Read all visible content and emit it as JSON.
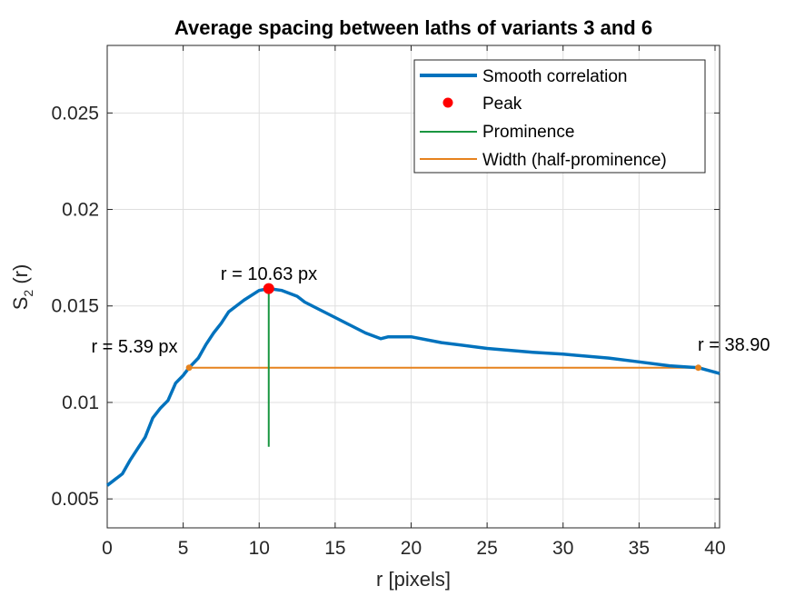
{
  "chart_data": {
    "type": "line",
    "title": "Average spacing between laths of variants 3 and 6",
    "xlabel": "r [pixels]",
    "ylabel": {
      "main": "S",
      "sub": "2",
      "rest": " (r)"
    },
    "xlim": [
      0,
      40.3
    ],
    "ylim": [
      0.0035,
      0.0285
    ],
    "xticks": [
      0,
      5,
      10,
      15,
      20,
      25,
      30,
      35,
      40
    ],
    "yticks": [
      0.005,
      0.01,
      0.015,
      0.02,
      0.025
    ],
    "xtick_labels": [
      "0",
      "5",
      "10",
      "15",
      "20",
      "25",
      "30",
      "35",
      "40"
    ],
    "ytick_labels": [
      "0.005",
      "0.01",
      "0.015",
      "0.02",
      "0.025"
    ],
    "grid": true,
    "legend_position": "top-right",
    "series": [
      {
        "name": "Smooth correlation",
        "color": "#0072BD",
        "x": [
          0,
          1,
          1.5,
          2,
          2.5,
          3,
          3.5,
          4,
          4.5,
          5,
          5.39,
          6,
          6.5,
          7,
          7.5,
          8,
          9,
          10,
          10.63,
          11.5,
          12.5,
          13,
          14,
          15,
          16,
          17,
          18,
          18.5,
          19.5,
          20,
          22,
          25,
          28,
          30,
          33,
          35,
          37,
          38.9,
          40.3
        ],
        "y": [
          0.0057,
          0.0063,
          0.007,
          0.0076,
          0.0082,
          0.0092,
          0.0097,
          0.0101,
          0.011,
          0.0114,
          0.0118,
          0.0123,
          0.013,
          0.0136,
          0.0141,
          0.0147,
          0.0153,
          0.0158,
          0.0159,
          0.0158,
          0.0155,
          0.0152,
          0.0148,
          0.0144,
          0.014,
          0.0136,
          0.0133,
          0.0134,
          0.0134,
          0.0134,
          0.0131,
          0.0128,
          0.0126,
          0.0125,
          0.0123,
          0.0121,
          0.0119,
          0.0118,
          0.0115
        ]
      }
    ],
    "peak": {
      "name": "Peak",
      "color": "#FF0000",
      "x": 10.63,
      "y": 0.0159,
      "label": "r = 10.63 px"
    },
    "prominence": {
      "name": "Prominence",
      "color": "#1A9641",
      "x": 10.63,
      "y_from": 0.0077,
      "y_to": 0.0159
    },
    "width": {
      "name": "Width (half-prominence)",
      "color": "#E6821E",
      "x_from": 5.39,
      "x_to": 38.9,
      "y": 0.0118,
      "left_label": "r = 5.39 px",
      "right_label": "r = 38.90"
    }
  }
}
